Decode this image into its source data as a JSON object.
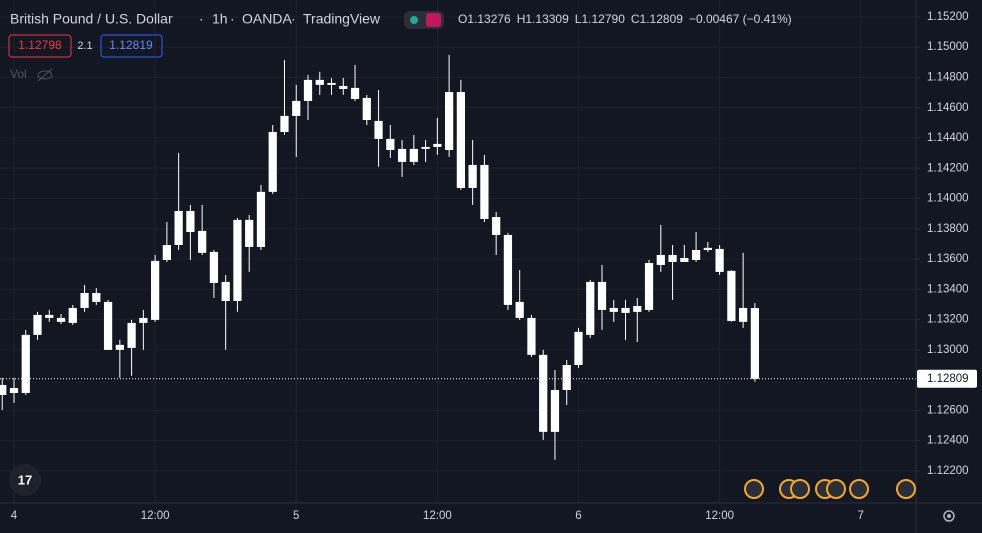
{
  "chart_data": {
    "type": "candlestick",
    "title": "British Pound / U.S. Dollar",
    "interval": "1h",
    "exchange": "OANDA",
    "source": "TradingView",
    "ohlc_header": [
      {
        "label": "O",
        "value": "1.13276"
      },
      {
        "label": "H",
        "value": "1.13309"
      },
      {
        "label": "L",
        "value": "1.12790"
      },
      {
        "label": "C",
        "value": "1.12809"
      }
    ],
    "change": "−0.00467 (−0.41%)",
    "bid": 1.12798,
    "spread": 2.1,
    "ask": 1.12819,
    "volume_label": "Vol",
    "last_price": 1.12809,
    "color": "#ffffff",
    "background": "#131722",
    "grid": true,
    "xlim": [
      -1.19,
      76.7
    ],
    "ylim": [
      1.11988,
      1.15312
    ],
    "xticks": [
      {
        "value": 0,
        "label": "4"
      },
      {
        "value": 12,
        "label": "12:00"
      },
      {
        "value": 24,
        "label": "5"
      },
      {
        "value": 36,
        "label": "12:00"
      },
      {
        "value": 48,
        "label": "6"
      },
      {
        "value": 60,
        "label": "12:00"
      },
      {
        "value": 72,
        "label": "7"
      }
    ],
    "yticks": [
      {
        "value": 1.122,
        "label": "1.12200"
      },
      {
        "value": 1.124,
        "label": "1.12400"
      },
      {
        "value": 1.126,
        "label": "1.12600"
      },
      {
        "value": 1.13,
        "label": "1.13000"
      },
      {
        "value": 1.132,
        "label": "1.13200"
      },
      {
        "value": 1.134,
        "label": "1.13400"
      },
      {
        "value": 1.136,
        "label": "1.13600"
      },
      {
        "value": 1.138,
        "label": "1.13800"
      },
      {
        "value": 1.14,
        "label": "1.14000"
      },
      {
        "value": 1.142,
        "label": "1.14200"
      },
      {
        "value": 1.144,
        "label": "1.14400"
      },
      {
        "value": 1.146,
        "label": "1.14600"
      },
      {
        "value": 1.148,
        "label": "1.14800"
      },
      {
        "value": 1.15,
        "label": "1.15000"
      },
      {
        "value": 1.152,
        "label": "1.15200"
      }
    ],
    "x": [
      -1,
      0,
      1,
      2,
      3,
      4,
      5,
      6,
      7,
      8,
      9,
      10,
      11,
      12,
      13,
      14,
      15,
      16,
      17,
      18,
      19,
      20,
      21,
      22,
      23,
      24,
      25,
      26,
      27,
      28,
      29,
      30,
      31,
      32,
      33,
      34,
      35,
      36,
      37,
      38,
      39,
      40,
      41,
      42,
      43,
      44,
      45,
      46,
      47,
      48,
      49,
      50,
      51,
      52,
      53,
      54,
      55,
      56,
      57,
      58,
      59,
      60,
      61,
      62,
      63
    ],
    "open": [
      1.12768,
      1.12715,
      1.12715,
      1.13099,
      1.13211,
      1.13211,
      1.13178,
      1.13277,
      1.13376,
      1.13317,
      1.13,
      1.13013,
      1.13178,
      1.13198,
      1.13594,
      1.13693,
      1.13918,
      1.13786,
      1.13647,
      1.13449,
      1.13323,
      1.13859,
      1.1368,
      1.14044,
      1.1444,
      1.14546,
      1.14645,
      1.14784,
      1.14751,
      1.14744,
      1.14731,
      1.14665,
      1.14513,
      1.14394,
      1.14328,
      1.14242,
      1.14328,
      1.14341,
      1.14321,
      1.14704,
      1.1407,
      1.14222,
      1.13878,
      1.13759,
      1.13317,
      1.13211,
      1.12967,
      1.12458,
      1.12735,
      1.129,
      1.13099,
      1.13449,
      1.13277,
      1.13277,
      1.13251,
      1.13264,
      1.13561,
      1.13627,
      1.13581,
      1.13594,
      1.1366,
      1.13667,
      1.13522,
      1.13185,
      1.13276
    ],
    "high": [
      1.12815,
      1.12815,
      1.13132,
      1.13251,
      1.13264,
      1.13237,
      1.13297,
      1.13429,
      1.13409,
      1.1333,
      1.13066,
      1.13198,
      1.13264,
      1.13627,
      1.13845,
      1.14301,
      1.13958,
      1.13958,
      1.1366,
      1.13495,
      1.13872,
      1.13892,
      1.1409,
      1.14486,
      1.14916,
      1.14751,
      1.14817,
      1.14837,
      1.14797,
      1.14797,
      1.14883,
      1.14685,
      1.14718,
      1.14486,
      1.14387,
      1.1442,
      1.14387,
      1.14533,
      1.14949,
      1.14784,
      1.14387,
      1.14288,
      1.13911,
      1.13773,
      1.13528,
      1.13231,
      1.13,
      1.12867,
      1.12933,
      1.13145,
      1.13462,
      1.13561,
      1.1333,
      1.1333,
      1.13343,
      1.13594,
      1.13826,
      1.13693,
      1.13693,
      1.13779,
      1.13713,
      1.13693,
      1.13528,
      1.13641,
      1.13309
    ],
    "low": [
      1.12603,
      1.12649,
      1.12702,
      1.13066,
      1.13185,
      1.13171,
      1.13165,
      1.13251,
      1.13297,
      1.13,
      1.12815,
      1.12828,
      1.13,
      1.13185,
      1.13581,
      1.1366,
      1.13594,
      1.13627,
      1.13343,
      1.13,
      1.13251,
      1.13515,
      1.1366,
      1.1403,
      1.1442,
      1.14275,
      1.14519,
      1.14685,
      1.14685,
      1.14685,
      1.14645,
      1.14486,
      1.14209,
      1.14268,
      1.14143,
      1.14222,
      1.14242,
      1.14288,
      1.14275,
      1.14057,
      1.13958,
      1.13845,
      1.13627,
      1.13264,
      1.13198,
      1.12953,
      1.12405,
      1.12273,
      1.12636,
      1.12881,
      1.13079,
      1.13132,
      1.13185,
      1.13066,
      1.13052,
      1.13251,
      1.13515,
      1.1333,
      1.13581,
      1.13581,
      1.13647,
      1.13495,
      1.13185,
      1.13145,
      1.1279
    ],
    "close": [
      1.12702,
      1.12748,
      1.13099,
      1.13231,
      1.13231,
      1.13185,
      1.13277,
      1.13376,
      1.13317,
      1.13,
      1.13033,
      1.13178,
      1.13211,
      1.13588,
      1.13693,
      1.13918,
      1.13779,
      1.13641,
      1.13442,
      1.13323,
      1.13859,
      1.1368,
      1.14044,
      1.1444,
      1.14546,
      1.14645,
      1.14784,
      1.14751,
      1.14764,
      1.14724,
      1.14658,
      1.14519,
      1.14394,
      1.14321,
      1.14242,
      1.14328,
      1.14341,
      1.14361,
      1.14704,
      1.1407,
      1.14222,
      1.13865,
      1.13759,
      1.13297,
      1.13211,
      1.12967,
      1.12458,
      1.12735,
      1.129,
      1.13119,
      1.13449,
      1.13264,
      1.13251,
      1.13244,
      1.1329,
      1.13574,
      1.13627,
      1.13581,
      1.13607,
      1.1366,
      1.13674,
      1.13515,
      1.13191,
      1.13277,
      1.12809
    ]
  }
}
